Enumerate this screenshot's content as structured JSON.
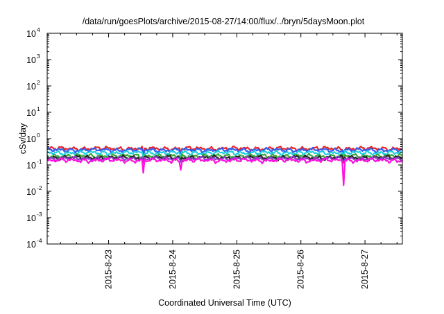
{
  "chart_data": {
    "type": "line",
    "title": "/data/run/goesPlots/archive/2015-08-27/14:00/flux/../bryn/5daysMoon.plot",
    "xlabel": "Coordinated Universal Time (UTC)",
    "ylabel": "cSv/day",
    "yscale": "log",
    "ylim": [
      0.0001,
      10000
    ],
    "y_ticks": [
      {
        "value": 0.0001,
        "base": "10",
        "exp": "-4"
      },
      {
        "value": 0.001,
        "base": "10",
        "exp": "-3"
      },
      {
        "value": 0.01,
        "base": "10",
        "exp": "-2"
      },
      {
        "value": 0.1,
        "base": "10",
        "exp": "-1"
      },
      {
        "value": 1,
        "base": "10",
        "exp": "0"
      },
      {
        "value": 10,
        "base": "10",
        "exp": "1"
      },
      {
        "value": 100,
        "base": "10",
        "exp": "2"
      },
      {
        "value": 1000,
        "base": "10",
        "exp": "3"
      },
      {
        "value": 10000,
        "base": "10",
        "exp": "4"
      }
    ],
    "xlim": [
      "2015-08-22 01:00",
      "2015-08-27 14:00"
    ],
    "x_ticks": [
      {
        "value": "2015-08-23 00:00",
        "label": "2015-8-23"
      },
      {
        "value": "2015-08-24 00:00",
        "label": "2015-8-24"
      },
      {
        "value": "2015-08-25 00:00",
        "label": "2015-8-25"
      },
      {
        "value": "2015-08-26 00:00",
        "label": "2015-8-26"
      },
      {
        "value": "2015-08-27 00:00",
        "label": "2015-8-27"
      }
    ],
    "grid": false,
    "series": [
      {
        "color": "#e8232a",
        "base": 0.42,
        "dips": [
          {
            "x": "2015-08-23 13:00",
            "y": 0.27
          },
          {
            "x": "2015-08-24 03:00",
            "y": 0.29
          },
          {
            "x": "2015-08-26 16:00",
            "y": 0.28
          }
        ]
      },
      {
        "color": "#3060f0",
        "base": 0.37,
        "dips": [
          {
            "x": "2015-08-23 13:00",
            "y": 0.24
          },
          {
            "x": "2015-08-24 03:00",
            "y": 0.26
          },
          {
            "x": "2015-08-26 16:00",
            "y": 0.25
          }
        ]
      },
      {
        "color": "#20d0e0",
        "base": 0.29,
        "dips": [
          {
            "x": "2015-08-23 13:00",
            "y": 0.2
          },
          {
            "x": "2015-08-24 03:00",
            "y": 0.21
          },
          {
            "x": "2015-08-26 16:00",
            "y": 0.2
          }
        ]
      },
      {
        "color": "#3aa53a",
        "base": 0.22,
        "dips": [
          {
            "x": "2015-08-23 13:00",
            "y": 0.16
          },
          {
            "x": "2015-08-24 03:00",
            "y": 0.17
          },
          {
            "x": "2015-08-26 16:00",
            "y": 0.16
          }
        ]
      },
      {
        "color": "#222222",
        "base": 0.19,
        "dips": [
          {
            "x": "2015-08-23 13:00",
            "y": 0.14
          },
          {
            "x": "2015-08-24 03:00",
            "y": 0.15
          },
          {
            "x": "2015-08-26 16:00",
            "y": 0.14
          }
        ]
      },
      {
        "color": "#8a40c0",
        "base": 0.175,
        "dips": [
          {
            "x": "2015-08-23 13:00",
            "y": 0.12
          },
          {
            "x": "2015-08-24 03:00",
            "y": 0.13
          },
          {
            "x": "2015-08-26 16:00",
            "y": 0.12
          }
        ]
      },
      {
        "color": "#ff10e0",
        "base": 0.15,
        "dips": [
          {
            "x": "2015-08-23 13:00",
            "y": 0.05
          },
          {
            "x": "2015-08-24 03:00",
            "y": 0.065
          },
          {
            "x": "2015-08-26 16:00",
            "y": 0.017
          }
        ]
      }
    ]
  }
}
